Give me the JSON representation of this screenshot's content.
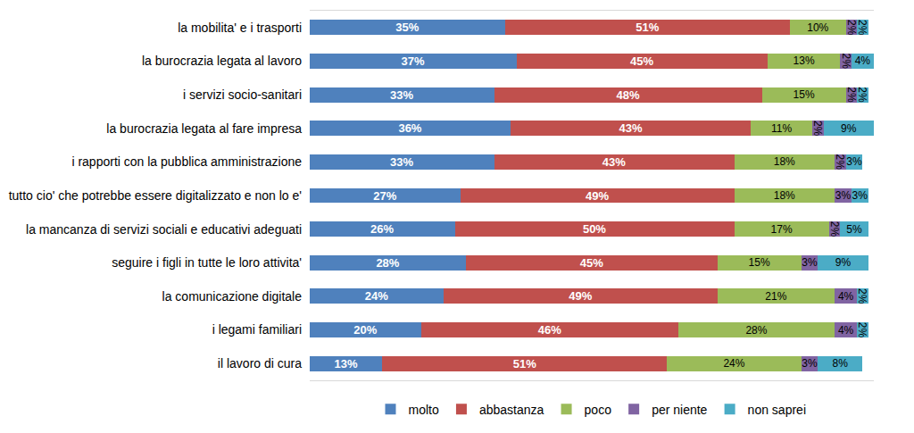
{
  "chart_data": {
    "type": "bar",
    "orientation": "horizontal",
    "stacked": true,
    "data_labels": true,
    "tick_labels": "y",
    "grid": true,
    "legend": "bottom",
    "xlim": [
      0,
      101
    ],
    "categories": [
      "la mobilita' e i trasporti",
      "la burocrazia legata al lavoro",
      "i servizi socio-sanitari",
      "la burocrazia legata al fare impresa",
      "i rapporti con la pubblica amministrazione",
      "tutto cio' che potrebbe essere digitalizzato e non lo e'",
      "la mancanza di servizi sociali e educativi adeguati",
      "seguire i figli in tutte le loro attivita'",
      "la comunicazione digitale",
      "i legami familiari",
      "il lavoro di cura"
    ],
    "series": [
      {
        "name": "molto",
        "color": "#4F81BD",
        "values": [
          35,
          37,
          33,
          36,
          33,
          27,
          26,
          28,
          24,
          20,
          13
        ],
        "value_labels": [
          "35%",
          "37%",
          "33%",
          "36%",
          "33%",
          "27%",
          "26%",
          "28%",
          "24%",
          "20%",
          "13%"
        ]
      },
      {
        "name": "abbastanza",
        "color": "#C0504D",
        "values": [
          51,
          45,
          48,
          43,
          43,
          49,
          50,
          45,
          49,
          46,
          51
        ],
        "value_labels": [
          "51%",
          "45%",
          "48%",
          "43%",
          "43%",
          "49%",
          "50%",
          "45%",
          "49%",
          "46%",
          "51%"
        ]
      },
      {
        "name": "poco",
        "color": "#9BBB59",
        "values": [
          10,
          13,
          15,
          11,
          18,
          18,
          17,
          15,
          21,
          28,
          24
        ],
        "value_labels": [
          "10%",
          "13%",
          "15%",
          "11%",
          "18%",
          "18%",
          "17%",
          "15%",
          "21%",
          "28%",
          "24%"
        ]
      },
      {
        "name": "per niente",
        "color": "#8064A2",
        "values": [
          2,
          2,
          2,
          2,
          2,
          3,
          2,
          3,
          4,
          4,
          3
        ],
        "value_labels": [
          "2%",
          "2%",
          "2%",
          "2%",
          "2%",
          "3%",
          "2%",
          "3%",
          "4%",
          "4%",
          "3%"
        ]
      },
      {
        "name": "non saprei",
        "color": "#4BACC6",
        "values": [
          2,
          4,
          2,
          9,
          3,
          3,
          5,
          9,
          2,
          2,
          8
        ],
        "value_labels": [
          "2%",
          "4%",
          "2%",
          "9%",
          "3%",
          "3%",
          "5%",
          "9%",
          "2%",
          "2%",
          "8%"
        ]
      }
    ]
  }
}
